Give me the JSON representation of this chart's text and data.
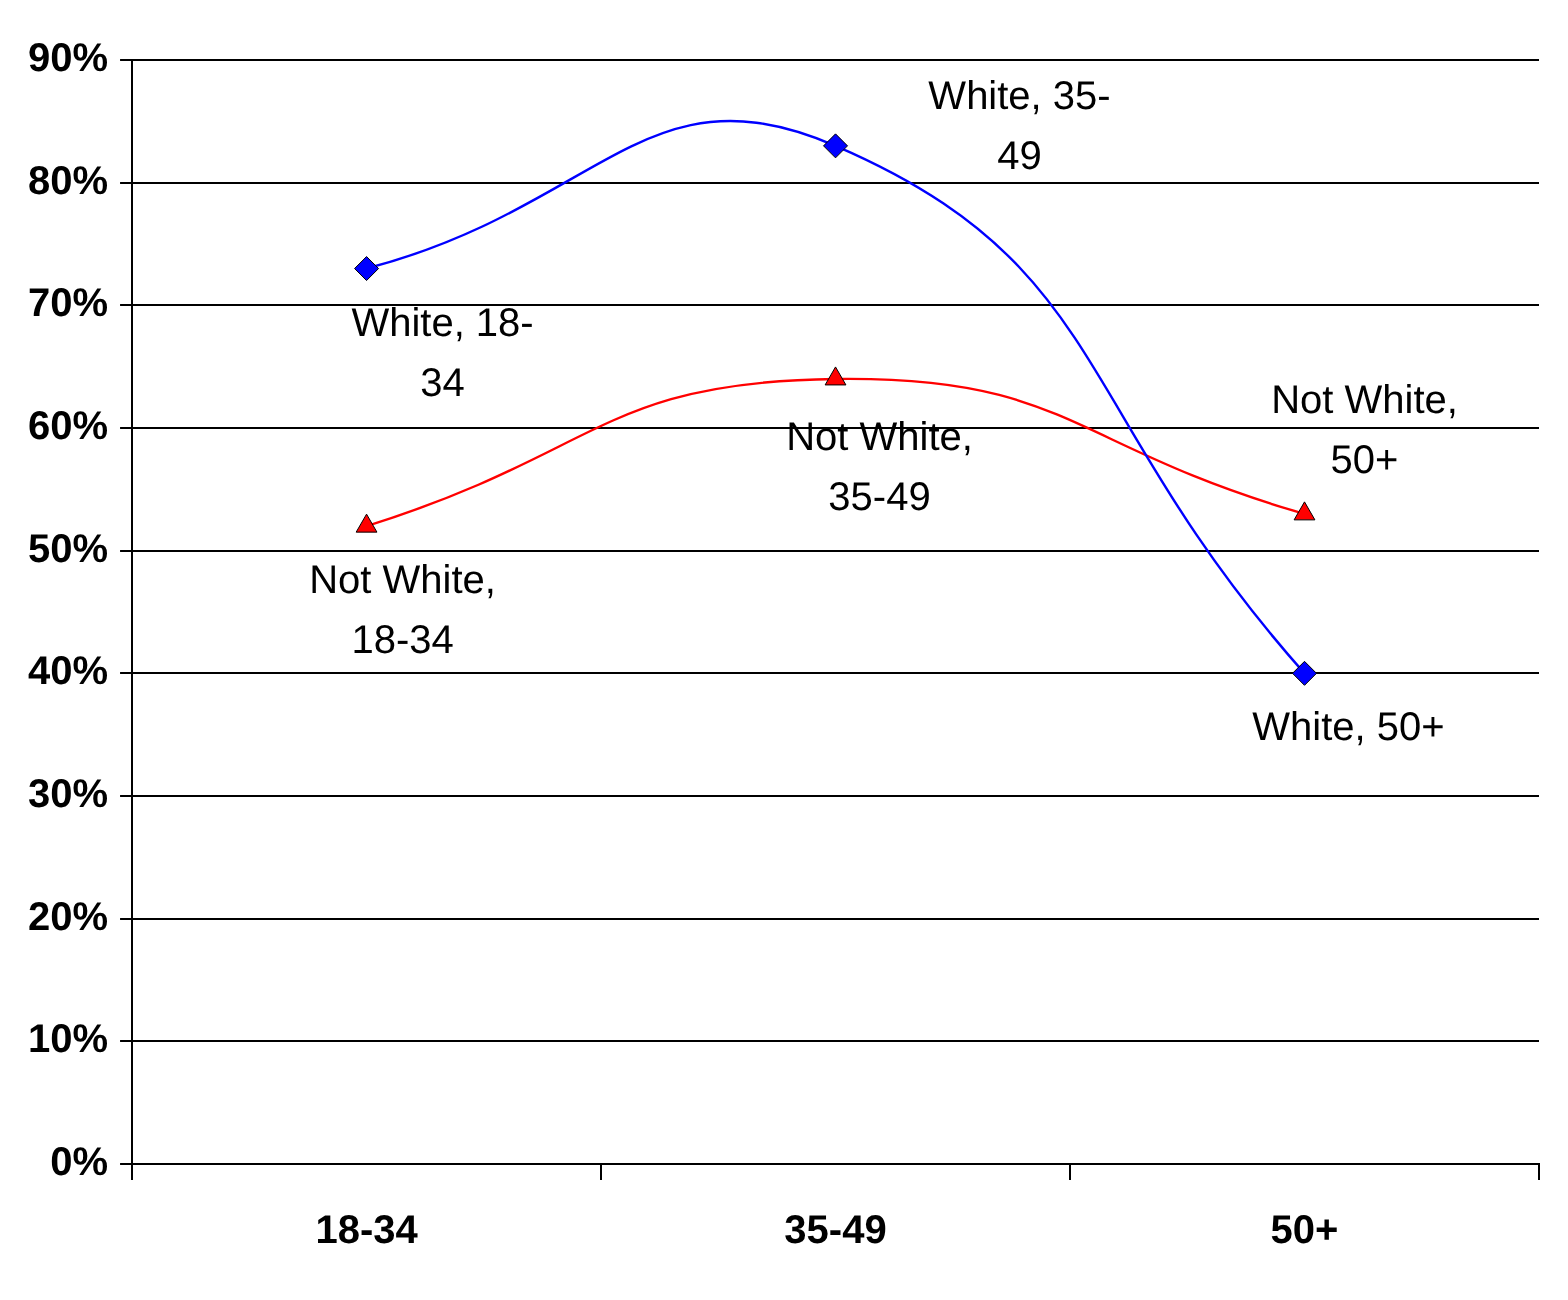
{
  "chart_data": {
    "type": "line",
    "categories": [
      "18-34",
      "35-49",
      "50+"
    ],
    "series": [
      {
        "color": "#0000ff",
        "values": [
          73,
          83,
          40
        ],
        "marker": "diamond"
      },
      {
        "color": "#ff0000",
        "values": [
          52,
          64,
          53
        ],
        "marker": "triangle"
      }
    ],
    "ylim": [
      0,
      90
    ],
    "yticks": [
      {
        "value": 0,
        "label": "0%"
      },
      {
        "value": 10,
        "label": "10%"
      },
      {
        "value": 20,
        "label": "20%"
      },
      {
        "value": 30,
        "label": "30%"
      },
      {
        "value": 40,
        "label": "40%"
      },
      {
        "value": 50,
        "label": "50%"
      },
      {
        "value": 60,
        "label": "60%"
      },
      {
        "value": 70,
        "label": "70%"
      },
      {
        "value": 80,
        "label": "80%"
      },
      {
        "value": 90,
        "label": "90%"
      }
    ],
    "grid": "y",
    "legend": false,
    "annotations": [
      {
        "text": "White, 18-34",
        "x": "18-34",
        "y": 73
      },
      {
        "text": "White, 35-49",
        "x": "35-49",
        "y": 83
      },
      {
        "text": "White, 50+",
        "x": "50+",
        "y": 40
      },
      {
        "text": "Not White, 18-34",
        "x": "18-34",
        "y": 52
      },
      {
        "text": "Not White, 35-49",
        "x": "35-49",
        "y": 64
      },
      {
        "text": "Not White, 50+",
        "x": "50+",
        "y": 53
      }
    ]
  }
}
